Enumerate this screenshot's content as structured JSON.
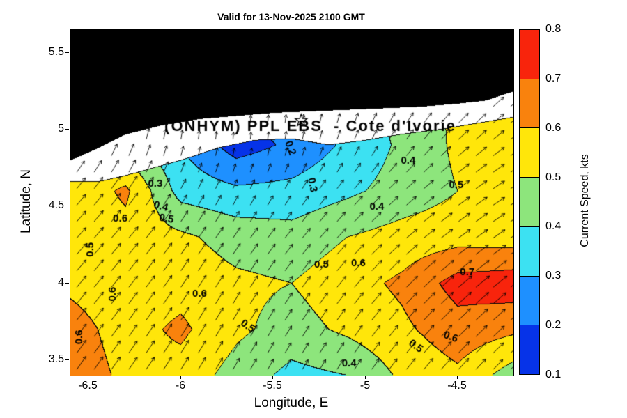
{
  "chart_data": {
    "type": "heatmap",
    "title": "Valid for 13-Nov-2025 2100 GMT",
    "xlabel": "Longitude, E",
    "ylabel": "Latitude, N",
    "xlim": [
      -6.6,
      -4.2
    ],
    "ylim": [
      3.4,
      5.65
    ],
    "grid": false,
    "x_ticks": [
      {
        "value": -6.5,
        "label": "-6.5"
      },
      {
        "value": -6.0,
        "label": "-6"
      },
      {
        "value": -5.5,
        "label": "-5.5"
      },
      {
        "value": -5.0,
        "label": "-5"
      },
      {
        "value": -4.5,
        "label": "-4.5"
      }
    ],
    "y_ticks": [
      {
        "value": 3.5,
        "label": "3.5"
      },
      {
        "value": 4.0,
        "label": "4"
      },
      {
        "value": 4.5,
        "label": "4.5"
      },
      {
        "value": 5.0,
        "label": "5"
      },
      {
        "value": 5.5,
        "label": "5.5"
      }
    ],
    "colorbar": {
      "label": "Current Speed, kts",
      "position": "right",
      "ticks": [
        "0.1",
        "0.2",
        "0.3",
        "0.4",
        "0.5",
        "0.6",
        "0.7",
        "0.8"
      ],
      "levels": [
        0.1,
        0.2,
        0.3,
        0.4,
        0.5,
        0.6,
        0.7,
        0.8
      ],
      "colors": [
        "#0633E8",
        "#1E90FF",
        "#3CE1F2",
        "#8DE57C",
        "#FFE60A",
        "#F9820D",
        "#F8240C"
      ]
    },
    "land_color": "#000000",
    "nodata_color": "#ffffff",
    "contour_line_color": "#0a0a0a",
    "field": {
      "units": "kts",
      "lons": [
        -6.6,
        -6.3,
        -6.0,
        -5.7,
        -5.4,
        -5.1,
        -4.8,
        -4.5,
        -4.2
      ],
      "lats": [
        3.4,
        3.7,
        4.0,
        4.3,
        4.6,
        4.9,
        5.2
      ],
      "speed": [
        [
          0.66,
          0.58,
          0.56,
          0.46,
          0.37,
          0.4,
          0.52,
          0.58,
          0.45
        ],
        [
          0.64,
          0.56,
          0.62,
          0.52,
          0.46,
          0.52,
          0.58,
          0.66,
          0.62
        ],
        [
          0.58,
          0.54,
          0.56,
          0.52,
          0.5,
          0.56,
          0.62,
          0.74,
          0.76
        ],
        [
          0.52,
          0.56,
          0.52,
          0.46,
          0.44,
          0.5,
          0.54,
          0.56,
          0.55
        ],
        [
          0.52,
          0.62,
          0.36,
          0.32,
          0.33,
          0.38,
          0.44,
          0.5,
          0.52
        ],
        [
          0.5,
          0.45,
          0.3,
          0.15,
          0.22,
          0.32,
          0.42,
          0.52,
          0.55
        ],
        [
          0.5,
          0.45,
          0.32,
          0.22,
          0.26,
          0.34,
          0.44,
          0.52,
          0.55
        ]
      ],
      "direction_deg": [
        [
          55,
          55,
          58,
          60,
          60,
          58,
          52,
          48,
          45
        ],
        [
          52,
          55,
          58,
          60,
          58,
          55,
          50,
          45,
          42
        ],
        [
          50,
          52,
          56,
          58,
          55,
          50,
          45,
          40,
          38
        ],
        [
          48,
          50,
          55,
          55,
          52,
          46,
          40,
          36,
          34
        ],
        [
          50,
          55,
          62,
          65,
          60,
          50,
          42,
          36,
          32
        ],
        [
          62,
          70,
          80,
          85,
          80,
          68,
          55,
          42,
          36
        ],
        [
          70,
          80,
          88,
          90,
          85,
          75,
          60,
          48,
          40
        ]
      ]
    },
    "coastline": {
      "lons": [
        -6.6,
        -6.45,
        -6.3,
        -6.1,
        -5.9,
        -5.7,
        -5.5,
        -5.3,
        -5.1,
        -4.9,
        -4.7,
        -4.5,
        -4.35,
        -4.2
      ],
      "lats": [
        4.8,
        4.88,
        4.97,
        5.03,
        5.07,
        5.09,
        5.11,
        5.12,
        5.13,
        5.14,
        5.15,
        5.17,
        5.19,
        5.25
      ]
    },
    "data_edge": {
      "lons": [
        -6.6,
        -6.45,
        -6.3,
        -6.0,
        -5.8,
        -5.6,
        -5.4,
        -5.2,
        -5.0,
        -4.8,
        -4.6,
        -4.4,
        -4.2
      ],
      "lats": [
        4.66,
        4.66,
        4.7,
        4.8,
        4.88,
        4.93,
        4.94,
        4.9,
        4.93,
        4.97,
        5.0,
        5.04,
        5.08
      ]
    },
    "contour_labels": [
      {
        "lon": -5.41,
        "lat": 4.88,
        "text": "0.2",
        "rot": -70
      },
      {
        "lon": -5.29,
        "lat": 4.64,
        "text": "0.3",
        "rot": -78
      },
      {
        "lon": -6.14,
        "lat": 4.65,
        "text": "0.3",
        "rot": 0
      },
      {
        "lon": -6.11,
        "lat": 4.5,
        "text": "0.4",
        "rot": -15
      },
      {
        "lon": -6.08,
        "lat": 4.42,
        "text": "0.5",
        "rot": -10
      },
      {
        "lon": -6.33,
        "lat": 4.42,
        "text": "0.6",
        "rot": 0
      },
      {
        "lon": -6.49,
        "lat": 4.22,
        "text": "0.5",
        "rot": 90
      },
      {
        "lon": -6.37,
        "lat": 3.93,
        "text": "0.6",
        "rot": 90
      },
      {
        "lon": -6.55,
        "lat": 3.65,
        "text": "0.6",
        "rot": 90
      },
      {
        "lon": -5.9,
        "lat": 3.93,
        "text": "0.6",
        "rot": 0
      },
      {
        "lon": -5.64,
        "lat": 3.72,
        "text": "0.5",
        "rot": -35
      },
      {
        "lon": -5.24,
        "lat": 4.12,
        "text": "0.5",
        "rot": 0
      },
      {
        "lon": -5.04,
        "lat": 4.13,
        "text": "0.6",
        "rot": 0
      },
      {
        "lon": -4.45,
        "lat": 4.07,
        "text": "0.7",
        "rot": 0
      },
      {
        "lon": -4.94,
        "lat": 4.5,
        "text": "0.4",
        "rot": 0
      },
      {
        "lon": -4.77,
        "lat": 4.8,
        "text": "0.4",
        "rot": 0
      },
      {
        "lon": -4.51,
        "lat": 4.64,
        "text": "0.5",
        "rot": 0
      },
      {
        "lon": -5.09,
        "lat": 3.48,
        "text": "0.4",
        "rot": 0
      },
      {
        "lon": -4.73,
        "lat": 3.59,
        "text": "0.5",
        "rot": -35
      },
      {
        "lon": -4.54,
        "lat": 3.65,
        "text": "0.6",
        "rot": -20
      }
    ],
    "annotation": {
      "text": "(ONHYM) PPL EBS  - Cote d'Ivorie",
      "lon": -5.3,
      "lat": 5.02
    },
    "star_marker": {
      "lon": -5.35,
      "lat": 5.06
    }
  }
}
